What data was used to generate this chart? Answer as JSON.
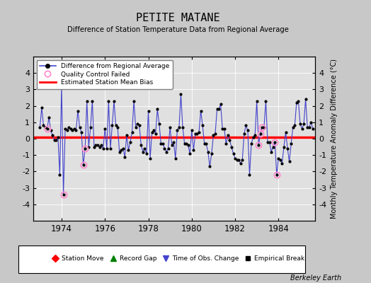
{
  "title": "PETITE MATANE",
  "subtitle": "Difference of Station Temperature Data from Regional Average",
  "ylabel": "Monthly Temperature Anomaly Difference (°C)",
  "xlabel_years": [
    1974,
    1976,
    1978,
    1980,
    1982,
    1984
  ],
  "bias": 0.07,
  "ylim": [
    -5,
    5
  ],
  "xlim_start": 1972.7,
  "xlim_end": 1985.7,
  "background_color": "#c8c8c8",
  "plot_bg_color": "#e0e0e0",
  "line_color": "#4444cc",
  "marker_color": "black",
  "bias_color": "red",
  "qc_color": "#ff88cc",
  "footer": "Berkeley Earth",
  "values": [
    0.7,
    1.9,
    0.8,
    0.7,
    0.6,
    1.3,
    0.5,
    0.2,
    -0.1,
    -0.1,
    0.1,
    -2.2,
    3.3,
    -3.4,
    0.6,
    0.5,
    0.7,
    0.6,
    0.5,
    0.6,
    0.5,
    1.7,
    0.7,
    0.4,
    -1.6,
    -0.6,
    2.3,
    -0.5,
    0.7,
    2.3,
    -0.5,
    -0.4,
    -0.4,
    -0.5,
    -0.4,
    -0.6,
    0.6,
    -0.6,
    2.3,
    -0.6,
    0.8,
    2.3,
    0.8,
    0.7,
    -0.8,
    -0.7,
    -0.6,
    -1.1,
    0.2,
    -0.7,
    -0.2,
    0.4,
    2.3,
    0.7,
    0.9,
    0.8,
    -0.4,
    -0.8,
    -0.6,
    -0.9,
    1.7,
    -1.2,
    0.4,
    0.5,
    0.3,
    1.8,
    0.9,
    -0.3,
    -0.3,
    -0.6,
    -0.8,
    -0.6,
    0.7,
    -0.4,
    -0.2,
    -1.2,
    0.5,
    0.7,
    2.7,
    0.7,
    -0.3,
    -0.3,
    -0.4,
    -0.9,
    0.5,
    -0.7,
    0.3,
    0.3,
    0.4,
    1.7,
    0.8,
    -0.3,
    -0.3,
    -0.8,
    -1.7,
    -0.9,
    0.2,
    0.3,
    1.8,
    1.8,
    2.1,
    0.6,
    0.6,
    -0.3,
    0.2,
    -0.1,
    -0.5,
    -0.9,
    -1.2,
    -1.3,
    -1.3,
    -1.5,
    -1.3,
    0.3,
    0.8,
    0.5,
    -2.2,
    -0.3,
    0.1,
    0.2,
    2.3,
    -0.4,
    0.3,
    0.7,
    0.7,
    2.3,
    -0.2,
    -0.2,
    -0.8,
    -0.5,
    -0.2,
    -2.2,
    -1.2,
    -1.3,
    -1.5,
    -0.5,
    0.4,
    -0.6,
    -1.4,
    -0.3,
    0.7,
    0.8,
    2.2,
    2.3,
    0.9,
    0.6,
    0.9,
    2.4,
    0.7,
    0.7,
    1.0,
    0.6
  ],
  "start_year": 1973.0,
  "qc_failed_indices": [
    4,
    12,
    13,
    24,
    25,
    121,
    122,
    123,
    130,
    131
  ],
  "legend2_items": [
    {
      "label": "Station Move",
      "color": "red",
      "marker": "D",
      "markersize": 5
    },
    {
      "label": "Record Gap",
      "color": "green",
      "marker": "^",
      "markersize": 6
    },
    {
      "label": "Time of Obs. Change",
      "color": "#4444cc",
      "marker": "v",
      "markersize": 6
    },
    {
      "label": "Empirical Break",
      "color": "black",
      "marker": "s",
      "markersize": 4
    }
  ]
}
